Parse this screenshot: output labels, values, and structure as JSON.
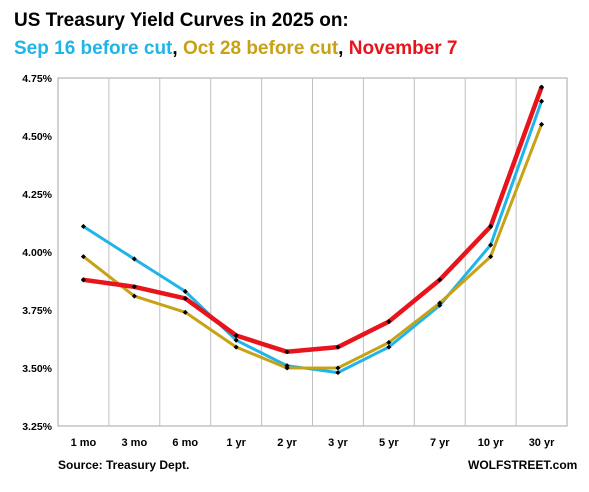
{
  "chart_data": {
    "type": "line",
    "title": "US Treasury Yield Curves in 2025 on:",
    "subtitle_parts": [
      {
        "text": "Sep 16 before cut",
        "color": "#1fb5ea"
      },
      {
        "text": ", ",
        "color": "#000000"
      },
      {
        "text": "Oct 28 before cut",
        "color": "#c8a215"
      },
      {
        "text": ", ",
        "color": "#000000"
      },
      {
        "text": "November 7",
        "color": "#e8141c"
      }
    ],
    "categories": [
      "1 mo",
      "3 mo",
      "6 mo",
      "1 yr",
      "2 yr",
      "3 yr",
      "5 yr",
      "7 yr",
      "10 yr",
      "30 yr"
    ],
    "series": [
      {
        "name": "Sep 16 before cut",
        "color": "#1fb5ea",
        "values": [
          4.11,
          3.97,
          3.83,
          3.62,
          3.51,
          3.48,
          3.59,
          3.77,
          4.03,
          4.65
        ]
      },
      {
        "name": "Oct 28 before cut",
        "color": "#c8a215",
        "values": [
          3.98,
          3.81,
          3.74,
          3.59,
          3.5,
          3.5,
          3.61,
          3.78,
          3.98,
          4.55
        ]
      },
      {
        "name": "November 7",
        "color": "#e8141c",
        "values": [
          3.88,
          3.85,
          3.8,
          3.64,
          3.57,
          3.59,
          3.7,
          3.88,
          4.11,
          4.71
        ]
      }
    ],
    "ylim": [
      3.25,
      4.75
    ],
    "yticks": [
      "3.25%",
      "3.50%",
      "3.75%",
      "4.00%",
      "4.25%",
      "4.50%",
      "4.75%"
    ],
    "grid": true,
    "source": "Source: Treasury Dept.",
    "brand": "WOLFSTREET.com"
  }
}
